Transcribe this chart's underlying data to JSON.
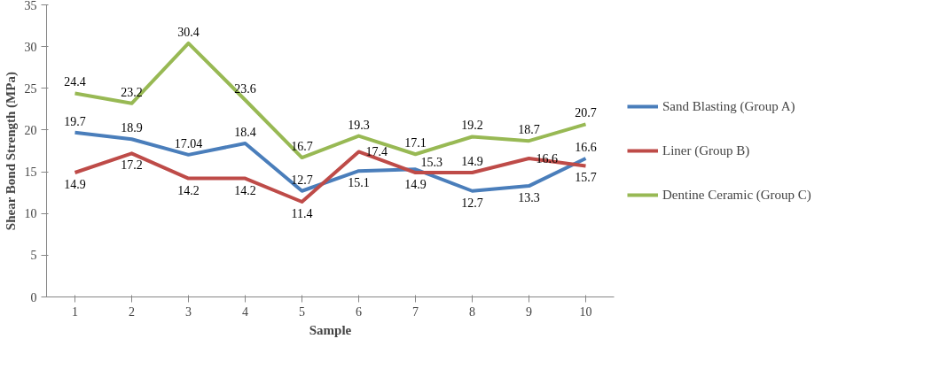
{
  "chart_data": {
    "type": "line",
    "xlabel": "Sample",
    "ylabel": "Shear Bond Strength (MPa)",
    "categories": [
      "1",
      "2",
      "3",
      "4",
      "5",
      "6",
      "7",
      "8",
      "9",
      "10"
    ],
    "series": [
      {
        "name": "Sand Blasting (Group A)",
        "color": "#4a7ebb",
        "values": [
          19.7,
          18.9,
          17.04,
          18.4,
          12.7,
          15.1,
          15.3,
          12.7,
          13.3,
          16.6
        ]
      },
      {
        "name": "Liner (Group B)",
        "color": "#be4b48",
        "values": [
          14.9,
          17.2,
          14.2,
          14.2,
          11.4,
          17.4,
          14.9,
          14.9,
          16.6,
          15.7
        ]
      },
      {
        "name": "Dentine Ceramic (Group C)",
        "color": "#98b954",
        "values": [
          24.4,
          23.2,
          30.4,
          23.6,
          16.7,
          19.3,
          17.1,
          19.2,
          18.7,
          20.7
        ]
      }
    ],
    "ylim": [
      0,
      35
    ],
    "yticks": [
      0,
      5,
      10,
      15,
      20,
      25,
      30,
      35
    ],
    "grid": false,
    "legend": "right",
    "data_labels": true,
    "marker": "none",
    "line_style": "solid"
  }
}
